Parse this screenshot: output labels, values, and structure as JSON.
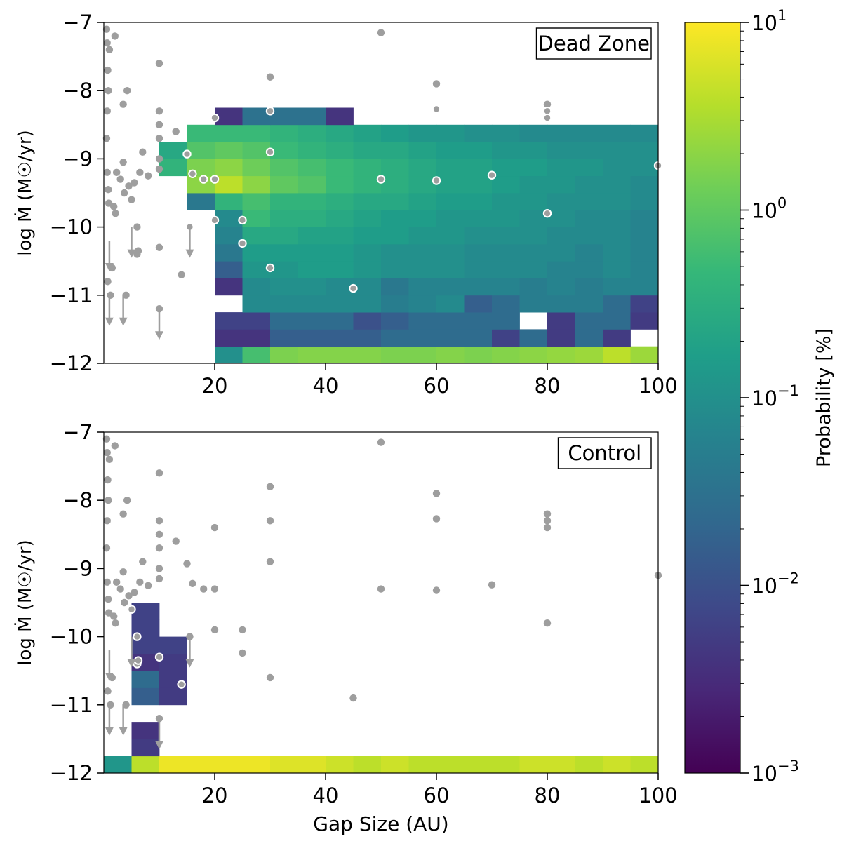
{
  "figure": {
    "colorbar": {
      "label": "Probability [%]",
      "scale": "log",
      "range": [
        -3,
        1
      ],
      "tick_exponents": [
        1,
        0,
        -1,
        -2,
        -3
      ],
      "tick_base": "10",
      "colormap": [
        "#440154",
        "#482878",
        "#3e4989",
        "#31688e",
        "#26828e",
        "#1f9e89",
        "#35b779",
        "#6ece58",
        "#b5de2b",
        "#fde725"
      ]
    },
    "axis_tick_labels": {
      "x": [
        "20",
        "40",
        "60",
        "80",
        "100"
      ],
      "y": [
        "−7",
        "−8",
        "−9",
        "−10",
        "−11",
        "−12"
      ]
    }
  },
  "chart_data": [
    {
      "type": "heatmap",
      "panel": "top",
      "label": "Dead Zone",
      "title": "",
      "xlabel": "",
      "ylabel": "log Ṁ (M☉/yr)",
      "xlim": [
        0,
        100
      ],
      "ylim": [
        -12,
        -7
      ],
      "x_bins": [
        0,
        5,
        10,
        15,
        20,
        25,
        30,
        35,
        40,
        45,
        50,
        55,
        60,
        65,
        70,
        75,
        80,
        85,
        90,
        95,
        100
      ],
      "y_bins": [
        -12,
        -11.75,
        -11.5,
        -11.25,
        -11,
        -10.75,
        -10.5,
        -10.25,
        -10,
        -9.75,
        -9.5,
        -9.25,
        -9,
        -8.75,
        -8.5,
        -8.25
      ],
      "cells_log10_percent": [
        [
          null,
          null,
          null,
          null,
          -1.0,
          -0.2,
          0.2,
          0.25,
          0.25,
          0.25,
          0.2,
          0.2,
          0.25,
          0.2,
          0.25,
          0.3,
          0.35,
          0.4,
          0.6,
          0.4
        ],
        [
          null,
          null,
          null,
          null,
          -2.4,
          -2.4,
          -1.8,
          -1.8,
          -1.8,
          -1.8,
          -1.6,
          -1.6,
          -1.6,
          -1.6,
          -2.2,
          -1.6,
          -2.3,
          -1.6,
          -2.3,
          null
        ],
        [
          null,
          null,
          null,
          null,
          -2.2,
          -2.2,
          -1.6,
          -1.6,
          -1.6,
          -2.0,
          -1.8,
          -1.6,
          -1.6,
          -1.6,
          -1.6,
          null,
          -2.3,
          -1.6,
          -1.6,
          -2.3
        ],
        [
          null,
          null,
          null,
          null,
          null,
          -1.1,
          -1.1,
          -1.1,
          -1.1,
          -1.1,
          -1.3,
          -1.2,
          -1.1,
          -1.8,
          -1.6,
          -1.3,
          -1.3,
          -1.3,
          -1.6,
          -2.2
        ],
        [
          null,
          null,
          null,
          null,
          -2.4,
          -1.1,
          -1.0,
          -1.0,
          -1.1,
          -1.1,
          -1.4,
          -1.2,
          -1.2,
          -1.2,
          -1.2,
          -1.3,
          -1.2,
          -1.3,
          -1.2,
          -1.2
        ],
        [
          null,
          null,
          null,
          null,
          -1.8,
          -0.9,
          -0.9,
          -0.8,
          -0.8,
          -0.9,
          -1.0,
          -1.0,
          -1.0,
          -1.1,
          -1.1,
          -1.1,
          -1.2,
          -1.2,
          -1.1,
          -1.2
        ],
        [
          null,
          null,
          null,
          null,
          -1.4,
          -0.8,
          -0.8,
          -0.8,
          -0.8,
          -0.9,
          -1.0,
          -1.0,
          -1.0,
          -1.1,
          -1.1,
          -1.1,
          -1.1,
          -1.2,
          -1.1,
          -1.2
        ],
        [
          null,
          null,
          null,
          null,
          -1.2,
          -0.6,
          -0.6,
          -0.7,
          -0.7,
          -0.8,
          -0.8,
          -0.9,
          -0.9,
          -1.0,
          -1.0,
          -1.0,
          -1.1,
          -1.1,
          -1.1,
          -1.2
        ],
        [
          null,
          null,
          null,
          null,
          -1.1,
          -0.3,
          -0.5,
          -0.5,
          -0.6,
          -0.7,
          -0.8,
          -0.8,
          -0.9,
          -0.9,
          -0.9,
          -1.0,
          -1.0,
          -1.1,
          -1.1,
          -1.2
        ],
        [
          null,
          null,
          null,
          -1.4,
          -0.4,
          -0.2,
          -0.4,
          -0.4,
          -0.5,
          -0.6,
          -0.6,
          -0.7,
          -0.8,
          -0.8,
          -0.9,
          -0.9,
          -1.0,
          -1.0,
          -1.0,
          -1.1
        ],
        [
          null,
          null,
          null,
          0.3,
          0.6,
          0.3,
          0.0,
          -0.1,
          -0.3,
          -0.4,
          -0.5,
          -0.6,
          -0.7,
          -0.7,
          -0.8,
          -0.9,
          -0.9,
          -1.0,
          -1.0,
          -1.1
        ],
        [
          null,
          null,
          -0.4,
          0.2,
          0.3,
          0.1,
          -0.1,
          -0.2,
          -0.3,
          -0.4,
          -0.5,
          -0.6,
          -0.7,
          -0.7,
          -0.8,
          -0.8,
          -0.9,
          -0.9,
          -1.0,
          -1.0
        ],
        [
          null,
          null,
          -0.6,
          -0.1,
          0.0,
          -0.1,
          -0.3,
          -0.4,
          -0.5,
          -0.6,
          -0.6,
          -0.7,
          -0.8,
          -0.8,
          -0.9,
          -0.9,
          -1.0,
          -1.0,
          -1.0,
          -1.0
        ],
        [
          null,
          null,
          null,
          -0.3,
          -0.3,
          -0.3,
          -0.4,
          -0.5,
          -0.6,
          -0.7,
          -0.8,
          -0.9,
          -0.9,
          -1.0,
          -1.0,
          -1.1,
          -1.1,
          -1.1,
          -1.1,
          -1.1
        ],
        [
          null,
          null,
          null,
          null,
          -2.4,
          -1.5,
          -1.5,
          -1.5,
          -2.4,
          null,
          null,
          null,
          null,
          null,
          null,
          null,
          null,
          null,
          null,
          null
        ]
      ]
    },
    {
      "type": "heatmap",
      "panel": "bottom",
      "label": "Control",
      "title": "",
      "xlabel": "Gap Size (AU)",
      "ylabel": "log Ṁ (M☉/yr)",
      "xlim": [
        0,
        100
      ],
      "ylim": [
        -12,
        -7
      ],
      "x_bins": [
        0,
        5,
        10,
        15,
        20,
        25,
        30,
        35,
        40,
        45,
        50,
        55,
        60,
        65,
        70,
        75,
        80,
        85,
        90,
        95,
        100
      ],
      "y_bins": [
        -12,
        -11.75,
        -11.5,
        -11.25,
        -11,
        -10.75,
        -10.5,
        -10.25,
        -10,
        -9.75,
        -9.5
      ],
      "cells_log10_percent": [
        [
          -0.9,
          0.6,
          0.9,
          0.9,
          0.9,
          0.9,
          0.8,
          0.8,
          0.7,
          0.6,
          0.7,
          0.6,
          0.6,
          0.6,
          0.6,
          0.7,
          0.7,
          0.6,
          0.7,
          0.6
        ],
        [
          null,
          -2.3,
          null,
          null,
          null,
          null,
          null,
          null,
          null,
          null,
          null,
          null,
          null,
          null,
          null,
          null,
          null,
          null,
          null,
          null
        ],
        [
          null,
          -2.4,
          null,
          null,
          null,
          null,
          null,
          null,
          null,
          null,
          null,
          null,
          null,
          null,
          null,
          null,
          null,
          null,
          null,
          null
        ],
        [
          null,
          null,
          null,
          null,
          null,
          null,
          null,
          null,
          null,
          null,
          null,
          null,
          null,
          null,
          null,
          null,
          null,
          null,
          null,
          null
        ],
        [
          null,
          -1.8,
          -2.3,
          null,
          null,
          null,
          null,
          null,
          null,
          null,
          null,
          null,
          null,
          null,
          null,
          null,
          null,
          null,
          null,
          null
        ],
        [
          null,
          -1.6,
          -2.3,
          null,
          null,
          null,
          null,
          null,
          null,
          null,
          null,
          null,
          null,
          null,
          null,
          null,
          null,
          null,
          null,
          null
        ],
        [
          null,
          -2.4,
          -2.3,
          null,
          null,
          null,
          null,
          null,
          null,
          null,
          null,
          null,
          null,
          null,
          null,
          null,
          null,
          null,
          null,
          null
        ],
        [
          null,
          -2.2,
          -2.2,
          null,
          null,
          null,
          null,
          null,
          null,
          null,
          null,
          null,
          null,
          null,
          null,
          null,
          null,
          null,
          null,
          null
        ],
        [
          null,
          -2.2,
          null,
          null,
          null,
          null,
          null,
          null,
          null,
          null,
          null,
          null,
          null,
          null,
          null,
          null,
          null,
          null,
          null,
          null
        ],
        [
          null,
          -2.2,
          null,
          null,
          null,
          null,
          null,
          null,
          null,
          null,
          null,
          null,
          null,
          null,
          null,
          null,
          null,
          null,
          null,
          null
        ]
      ]
    }
  ],
  "observations": [
    {
      "x": 0.5,
      "y": -7.1
    },
    {
      "x": 0.6,
      "y": -7.3
    },
    {
      "x": 0.7,
      "y": -7.7
    },
    {
      "x": 1,
      "y": -7.4
    },
    {
      "x": 0.8,
      "y": -8.0
    },
    {
      "x": 0.6,
      "y": -8.3
    },
    {
      "x": 0.5,
      "y": -8.7
    },
    {
      "x": 0.6,
      "y": -9.2
    },
    {
      "x": 0.8,
      "y": -9.45
    },
    {
      "x": 0.9,
      "y": -9.65
    },
    {
      "x": 0.7,
      "y": -10.8
    },
    {
      "x": 1.2,
      "y": -11.0
    },
    {
      "x": 1.5,
      "y": -10.6
    },
    {
      "x": 2,
      "y": -7.2
    },
    {
      "x": 1.8,
      "y": -9.7
    },
    {
      "x": 2.1,
      "y": -9.8
    },
    {
      "x": 2.3,
      "y": -9.2
    },
    {
      "x": 3,
      "y": -9.3
    },
    {
      "x": 3.5,
      "y": -8.2
    },
    {
      "x": 3.5,
      "y": -9.05
    },
    {
      "x": 3.7,
      "y": -9.5
    },
    {
      "x": 4,
      "y": -11.0
    },
    {
      "x": 4.5,
      "y": -9.4
    },
    {
      "x": 4.2,
      "y": -8.0
    },
    {
      "x": 5,
      "y": -9.6
    },
    {
      "x": 5.5,
      "y": -9.35
    },
    {
      "x": 6.5,
      "y": -9.2
    },
    {
      "x": 7,
      "y": -8.9
    },
    {
      "x": 8,
      "y": -9.25
    },
    {
      "x": 10,
      "y": -7.6
    },
    {
      "x": 10,
      "y": -8.3
    },
    {
      "x": 10,
      "y": -8.5
    },
    {
      "x": 10,
      "y": -8.7
    },
    {
      "x": 10,
      "y": -9.0
    },
    {
      "x": 10,
      "y": -9.15
    },
    {
      "x": 10,
      "y": -10.3
    },
    {
      "x": 10,
      "y": -11.2
    },
    {
      "x": 13,
      "y": -8.6
    },
    {
      "x": 14,
      "y": -10.7
    },
    {
      "x": 15,
      "y": -8.93
    },
    {
      "x": 15.5,
      "y": -10.0
    },
    {
      "x": 16,
      "y": -9.22
    },
    {
      "x": 18,
      "y": -9.3
    },
    {
      "x": 20,
      "y": -8.4
    },
    {
      "x": 20,
      "y": -9.3
    },
    {
      "x": 20,
      "y": -9.9
    },
    {
      "x": 25,
      "y": -9.9
    },
    {
      "x": 25,
      "y": -10.24
    },
    {
      "x": 30,
      "y": -7.8
    },
    {
      "x": 30,
      "y": -8.3
    },
    {
      "x": 30,
      "y": -8.9
    },
    {
      "x": 30,
      "y": -10.6
    },
    {
      "x": 45,
      "y": -10.9
    },
    {
      "x": 50,
      "y": -7.15
    },
    {
      "x": 50,
      "y": -9.3
    },
    {
      "x": 60,
      "y": -7.9
    },
    {
      "x": 60,
      "y": -8.27
    },
    {
      "x": 60,
      "y": -9.32
    },
    {
      "x": 70,
      "y": -9.24
    },
    {
      "x": 80,
      "y": -8.2
    },
    {
      "x": 80,
      "y": -8.3
    },
    {
      "x": 80,
      "y": -8.4
    },
    {
      "x": 80,
      "y": -9.8
    },
    {
      "x": 100,
      "y": -9.1
    },
    {
      "x": 6,
      "y": -10.0
    },
    {
      "x": 6,
      "y": -10.4
    },
    {
      "x": 6.2,
      "y": -10.35
    }
  ],
  "upper_limits": [
    {
      "x": 1,
      "y": -10.2
    },
    {
      "x": 1,
      "y": -11.0
    },
    {
      "x": 3.5,
      "y": -11.0
    },
    {
      "x": 5,
      "y": -10.0
    },
    {
      "x": 10,
      "y": -11.2
    },
    {
      "x": 15.5,
      "y": -10.0
    }
  ]
}
